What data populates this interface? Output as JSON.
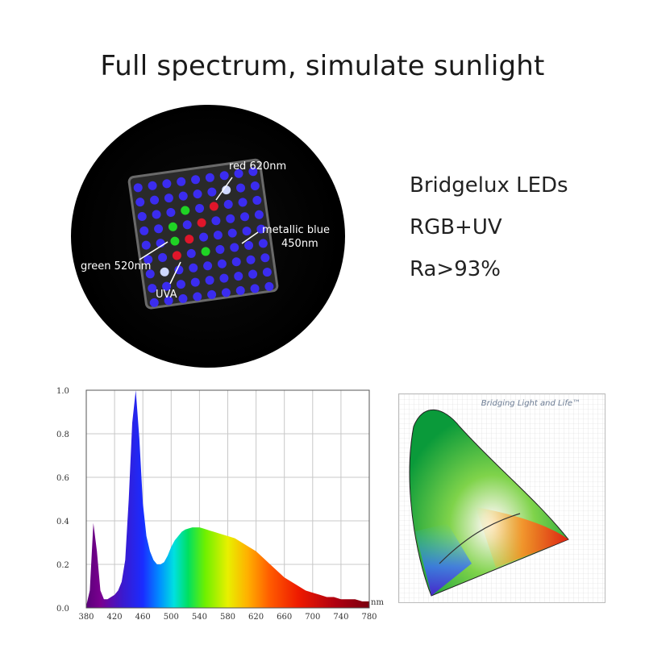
{
  "headline": "Full spectrum, simulate sunlight",
  "led": {
    "labels": {
      "red": "red 620nm",
      "blue_1": "metallic blue",
      "blue_2": "450nm",
      "green": "green 520nm",
      "uva": "UVA"
    },
    "colors": {
      "blue": "#3b2cf0",
      "red": "#e0162a",
      "green": "#1fd324",
      "uva": "#cfd8ff"
    }
  },
  "specs": [
    "Bridgelux LEDs",
    "RGB+UV",
    "Ra>93%"
  ],
  "cie": {
    "brand": "Bridging Light and Life™"
  },
  "chart_data": {
    "type": "area",
    "xlabel": "nm",
    "ylabel": "",
    "xlim": [
      380,
      780
    ],
    "ylim": [
      0,
      1.0
    ],
    "x_ticks": [
      "380",
      "420",
      "460",
      "500",
      "540",
      "580",
      "620",
      "660",
      "700",
      "740",
      "780"
    ],
    "y_ticks": [
      "0.0",
      "0.2",
      "0.4",
      "0.6",
      "0.8",
      "1.0"
    ],
    "grid": true,
    "x": [
      380,
      385,
      390,
      395,
      400,
      405,
      410,
      415,
      420,
      425,
      430,
      435,
      440,
      445,
      450,
      455,
      460,
      465,
      470,
      475,
      480,
      485,
      490,
      495,
      500,
      505,
      510,
      515,
      520,
      525,
      530,
      535,
      540,
      545,
      550,
      555,
      560,
      570,
      580,
      590,
      600,
      610,
      620,
      630,
      640,
      650,
      660,
      670,
      680,
      690,
      700,
      710,
      720,
      730,
      740,
      750,
      760,
      770,
      780
    ],
    "y": [
      0.01,
      0.08,
      0.39,
      0.26,
      0.08,
      0.04,
      0.04,
      0.05,
      0.06,
      0.08,
      0.12,
      0.22,
      0.5,
      0.85,
      1.0,
      0.78,
      0.48,
      0.33,
      0.26,
      0.22,
      0.2,
      0.2,
      0.21,
      0.24,
      0.28,
      0.31,
      0.33,
      0.35,
      0.36,
      0.365,
      0.37,
      0.37,
      0.37,
      0.365,
      0.36,
      0.355,
      0.35,
      0.34,
      0.33,
      0.32,
      0.3,
      0.28,
      0.26,
      0.23,
      0.2,
      0.17,
      0.14,
      0.12,
      0.1,
      0.08,
      0.07,
      0.06,
      0.05,
      0.05,
      0.04,
      0.04,
      0.04,
      0.03,
      0.03
    ]
  }
}
